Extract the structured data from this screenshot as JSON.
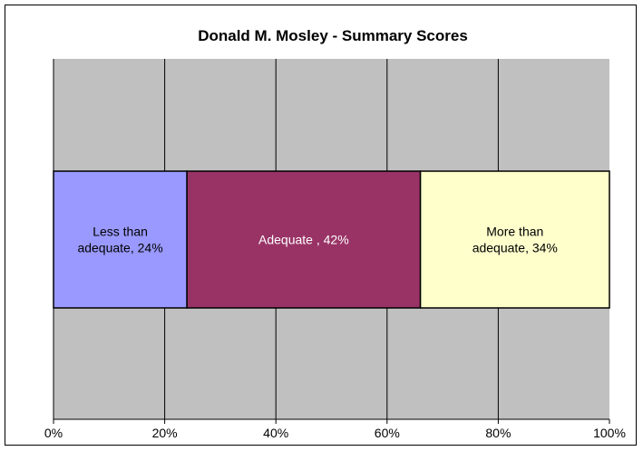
{
  "chart_data": {
    "type": "bar",
    "orientation": "horizontal",
    "stacking": "percent",
    "title": "Donald M. Mosley - Summary Scores",
    "xlim": [
      0,
      100
    ],
    "x_tick_labels": [
      "0%",
      "20%",
      "40%",
      "60%",
      "80%",
      "100%"
    ],
    "grid": true,
    "legend": "none",
    "plot_area_color": "#C0C0C0",
    "segments": [
      {
        "value": 24,
        "label_lines": [
          "Less than",
          "adequate, 24%"
        ],
        "color": "#9999FF",
        "text_color": "#000000"
      },
      {
        "value": 42,
        "label_lines": [
          "Adequate , 42%"
        ],
        "color": "#993366",
        "text_color": "#FFFFFF"
      },
      {
        "value": 34,
        "label_lines": [
          "More than",
          "adequate, 34%"
        ],
        "color": "#FFFFCC",
        "text_color": "#000000"
      }
    ]
  }
}
